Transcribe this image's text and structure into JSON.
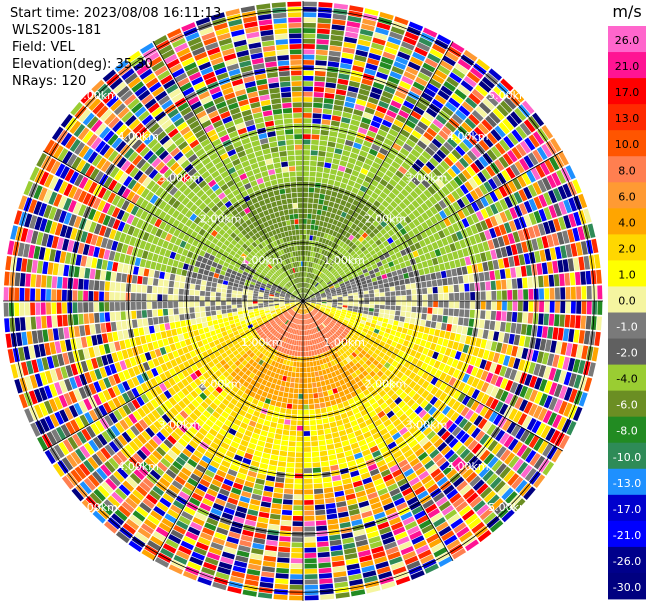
{
  "header": {
    "start_time": "Start time: 2023/08/08 16:11:13",
    "instrument": "WLS200s-181",
    "field": "Field: VEL",
    "elevation": "Elevation(deg): 35.30",
    "nrays": "NRays: 120"
  },
  "chart_data": {
    "type": "heatmap",
    "projection": "polar PPI",
    "title": "",
    "field": "VEL",
    "units": "m/s",
    "range_rings_km": [
      1,
      2,
      3,
      4,
      5
    ],
    "ring_labels": [
      "1.00km",
      "2.00km",
      "3.00km",
      "4.00km",
      "5.00km"
    ],
    "azimuth_lines_deg": [
      0,
      30,
      60,
      90,
      120,
      150,
      180,
      210,
      240,
      270,
      300,
      330
    ],
    "colorbar": {
      "unit_label": "m/s",
      "ticks": [
        "26.0",
        "21.0",
        "17.0",
        "13.0",
        "10.0",
        "8.0",
        "6.0",
        "4.0",
        "2.0",
        "1.0",
        "0.0",
        "-1.0",
        "-2.0",
        "-4.0",
        "-6.0",
        "-8.0",
        "-10.0",
        "-13.0",
        "-17.0",
        "-21.0",
        "-26.0",
        "-30.0"
      ],
      "colors": [
        "#ff66cc",
        "#ff1493",
        "#ff0000",
        "#ff2a00",
        "#ff5500",
        "#ff7f50",
        "#ff9a33",
        "#ffa500",
        "#ffd700",
        "#ffff00",
        "#f5f5a0",
        "#7a7a7a",
        "#606060",
        "#9acd32",
        "#6b8e23",
        "#228b22",
        "#2e8b57",
        "#1e90ff",
        "#0000cd",
        "#0000ff",
        "#00008b",
        "#000080"
      ]
    },
    "pattern": {
      "inner_region_km": 3.3,
      "north_sector_velocity": "-6.0 to -2.0 (greens)",
      "south_sector_velocity": "2.0 to 6.0 (yellow/orange)",
      "east_west_axis_velocity": "-1.0 to 0.0 (grays)",
      "outer_region": "noisy, all colors"
    }
  }
}
